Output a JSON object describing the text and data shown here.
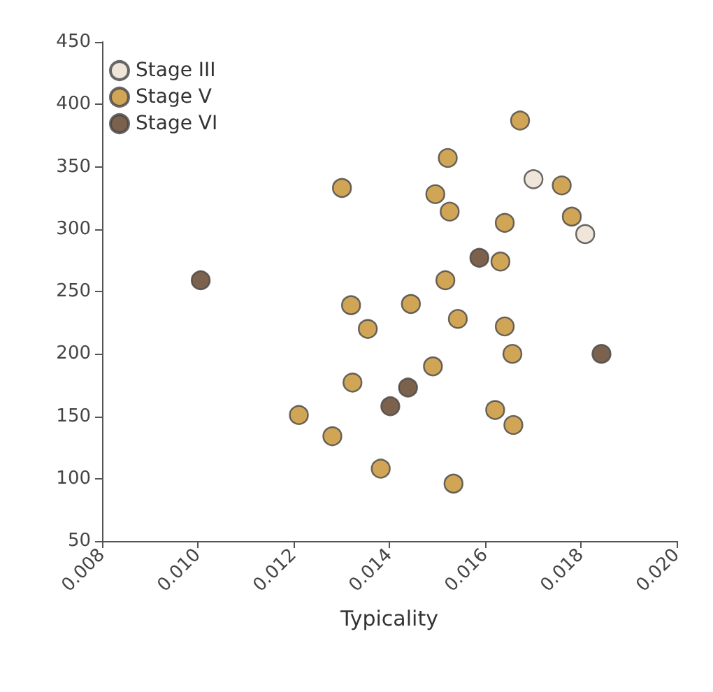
{
  "chart_data": {
    "type": "scatter",
    "xlabel": "Typicality",
    "xlim": [
      0.008,
      0.02
    ],
    "xticks": [
      {
        "value": 0.008,
        "label": "0.008"
      },
      {
        "value": 0.01,
        "label": "0.010"
      },
      {
        "value": 0.012,
        "label": "0.012"
      },
      {
        "value": 0.014,
        "label": "0.014"
      },
      {
        "value": 0.016,
        "label": "0.016"
      },
      {
        "value": 0.018,
        "label": "0.018"
      },
      {
        "value": 0.02,
        "label": "0.020"
      }
    ],
    "ylim": [
      50,
      450
    ],
    "yticks": [
      50,
      100,
      150,
      200,
      250,
      300,
      350,
      400,
      450
    ],
    "grid": false,
    "legend": "top left",
    "marker": "circle",
    "series": [
      {
        "name": "Stage III",
        "color": "#ebe0cf",
        "x": [
          0.01701,
          0.01809
        ],
        "values": [
          340,
          296
        ]
      },
      {
        "name": "Stage V",
        "color": "#c68f2c",
        "x": [
          0.01673,
          0.01522,
          0.01301,
          0.01496,
          0.01526,
          0.0176,
          0.01781,
          0.01641,
          0.01632,
          0.01517,
          0.0132,
          0.01445,
          0.01355,
          0.01543,
          0.01641,
          0.01657,
          0.01491,
          0.01323,
          0.01211,
          0.01621,
          0.01659,
          0.01281,
          0.01382,
          0.01534
        ],
        "values": [
          387,
          357,
          333,
          328,
          314,
          335,
          310,
          305,
          274,
          259,
          239,
          240,
          220,
          228,
          222,
          200,
          190,
          177,
          151,
          155,
          143,
          134,
          108,
          96
        ]
      },
      {
        "name": "Stage VI",
        "color": "#5b3b20",
        "x": [
          0.01588,
          0.01006,
          0.01843,
          0.01439,
          0.01402
        ],
        "values": [
          277,
          259,
          200,
          173,
          158
        ]
      }
    ]
  }
}
